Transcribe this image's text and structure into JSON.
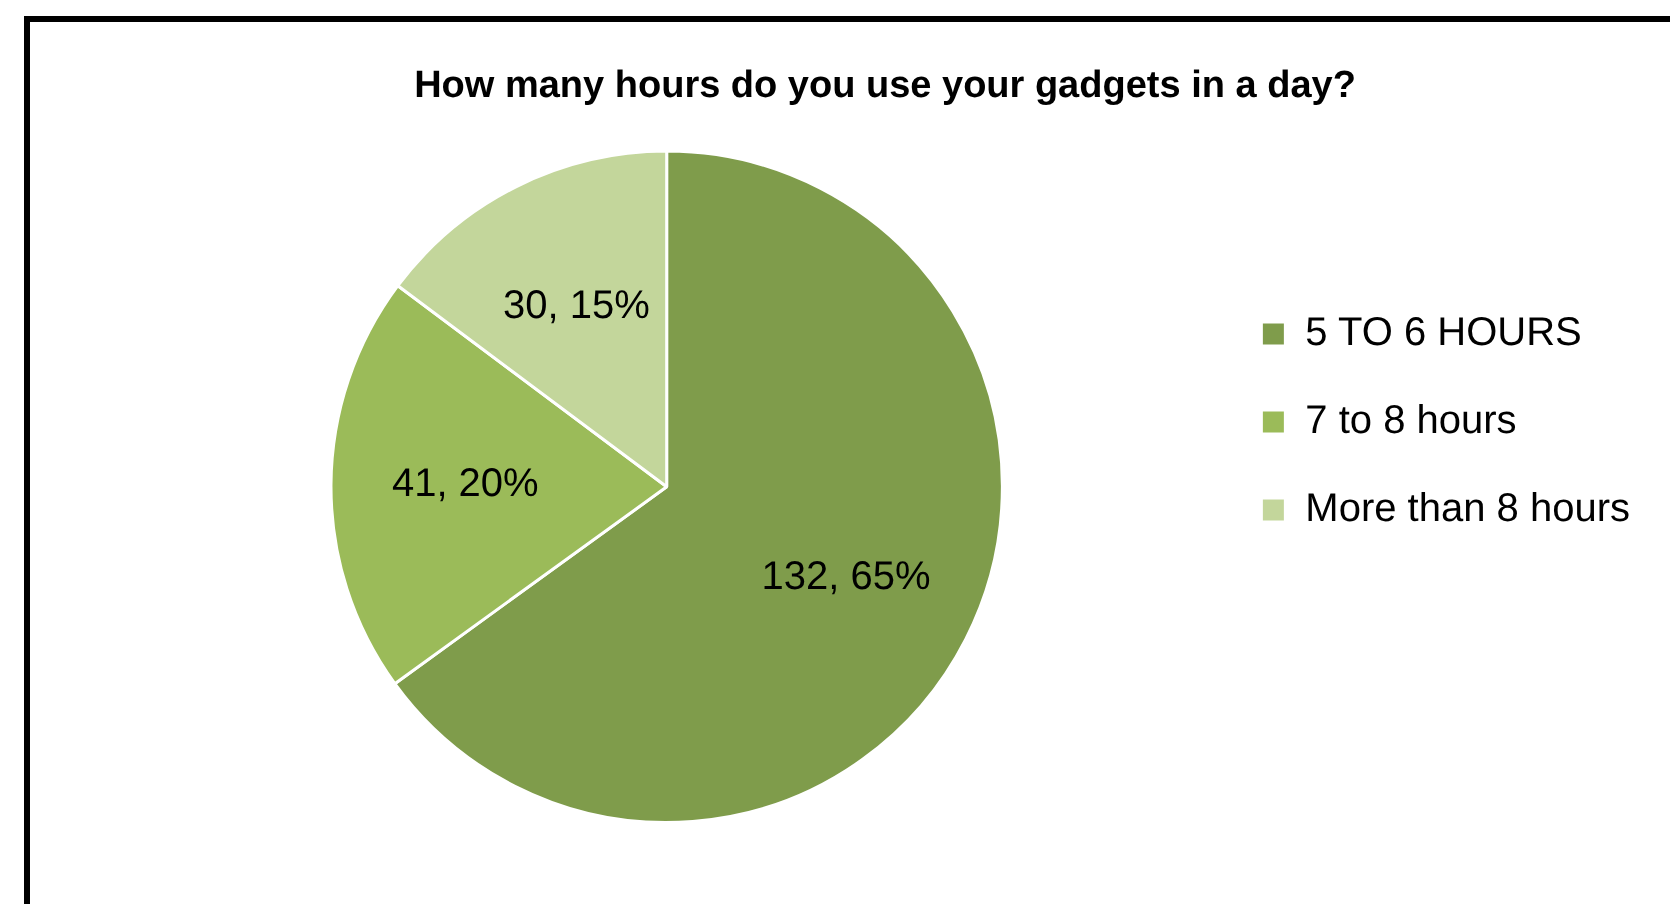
{
  "chart_data": {
    "type": "pie",
    "title": "How many hours do you use your gadgets in a day?",
    "categories": [
      "5 TO 6 HOURS",
      "7 to 8 hours",
      "More than 8 hours"
    ],
    "values": [
      132,
      41,
      30
    ],
    "colors": [
      "#7f9c4b",
      "#9bbb59",
      "#c3d69b"
    ],
    "value_labels": [
      "132, 65%",
      "41, 20%",
      "30, 15%"
    ],
    "legend": "right"
  }
}
